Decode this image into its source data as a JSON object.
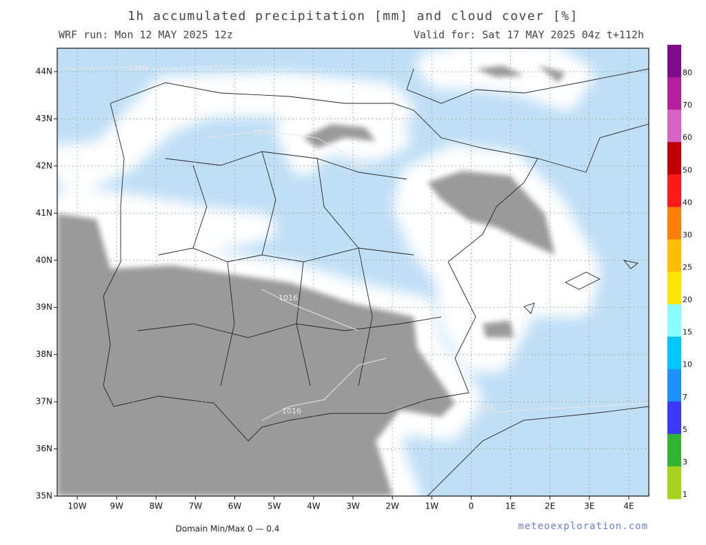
{
  "header": {
    "title": "1h accumulated precipitation [mm] and cloud cover [%]",
    "run": "WRF run: Mon 12 MAY 2025 12z",
    "valid": "Valid for: Sat 17 MAY 2025 04z  t+112h"
  },
  "map": {
    "lat_labels": [
      "44N",
      "43N",
      "42N",
      "41N",
      "40N",
      "39N",
      "38N",
      "37N",
      "36N",
      "35N"
    ],
    "lon_labels": [
      "10W",
      "9W",
      "8W",
      "7W",
      "6W",
      "5W",
      "4W",
      "3W",
      "2W",
      "1W",
      "0",
      "1E",
      "2E",
      "3E",
      "4E"
    ],
    "contour_labels": [
      "1020",
      "1020",
      "1020",
      "1016",
      "1016",
      "1016"
    ]
  },
  "colorbar": {
    "labels": [
      "80",
      "70",
      "60",
      "50",
      "40",
      "30",
      "25",
      "20",
      "15",
      "10",
      "7",
      "5",
      "3",
      "1"
    ]
  },
  "footer": {
    "minmax": "Domain Min/Max 0 — 0.4",
    "credit": "meteoexploration.com"
  }
}
